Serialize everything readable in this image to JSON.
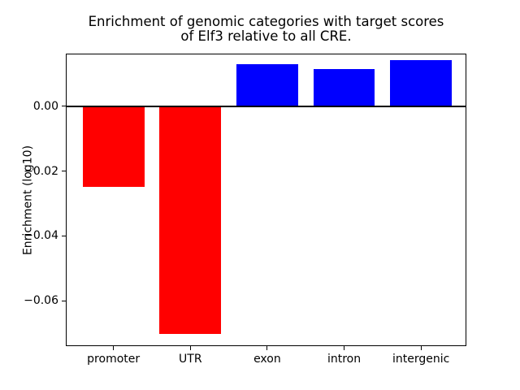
{
  "chart_data": {
    "type": "bar",
    "title": "Enrichment of genomic categories with target scores of Elf3 relative to all CRE.",
    "title_lines": [
      "Enrichment of genomic categories with target scores",
      "of Elf3 relative to all CRE."
    ],
    "xlabel": "",
    "ylabel": "Enrichment (log10)",
    "categories": [
      "promoter",
      "UTR",
      "exon",
      "intron",
      "intergenic"
    ],
    "values": [
      -0.0249,
      -0.0701,
      0.0129,
      0.0114,
      0.0141
    ],
    "bar_colors": [
      "#ff0000",
      "#ff0000",
      "#0000ff",
      "#0000ff",
      "#0000ff"
    ],
    "positive_color": "#0000ff",
    "negative_color": "#ff0000",
    "yticks": [
      0,
      -0.02,
      -0.04,
      -0.06
    ],
    "ytick_labels": [
      "0.00",
      "−0.02",
      "−0.04",
      "−0.06"
    ],
    "ylim": [
      -0.0738,
      0.0162
    ],
    "xlim": [
      -0.62,
      4.59
    ],
    "bar_width": 0.8,
    "grid": false,
    "legend": false,
    "zero_line": true,
    "axis_color": "#000000",
    "text_color": "#000000",
    "background": "#ffffff"
  }
}
